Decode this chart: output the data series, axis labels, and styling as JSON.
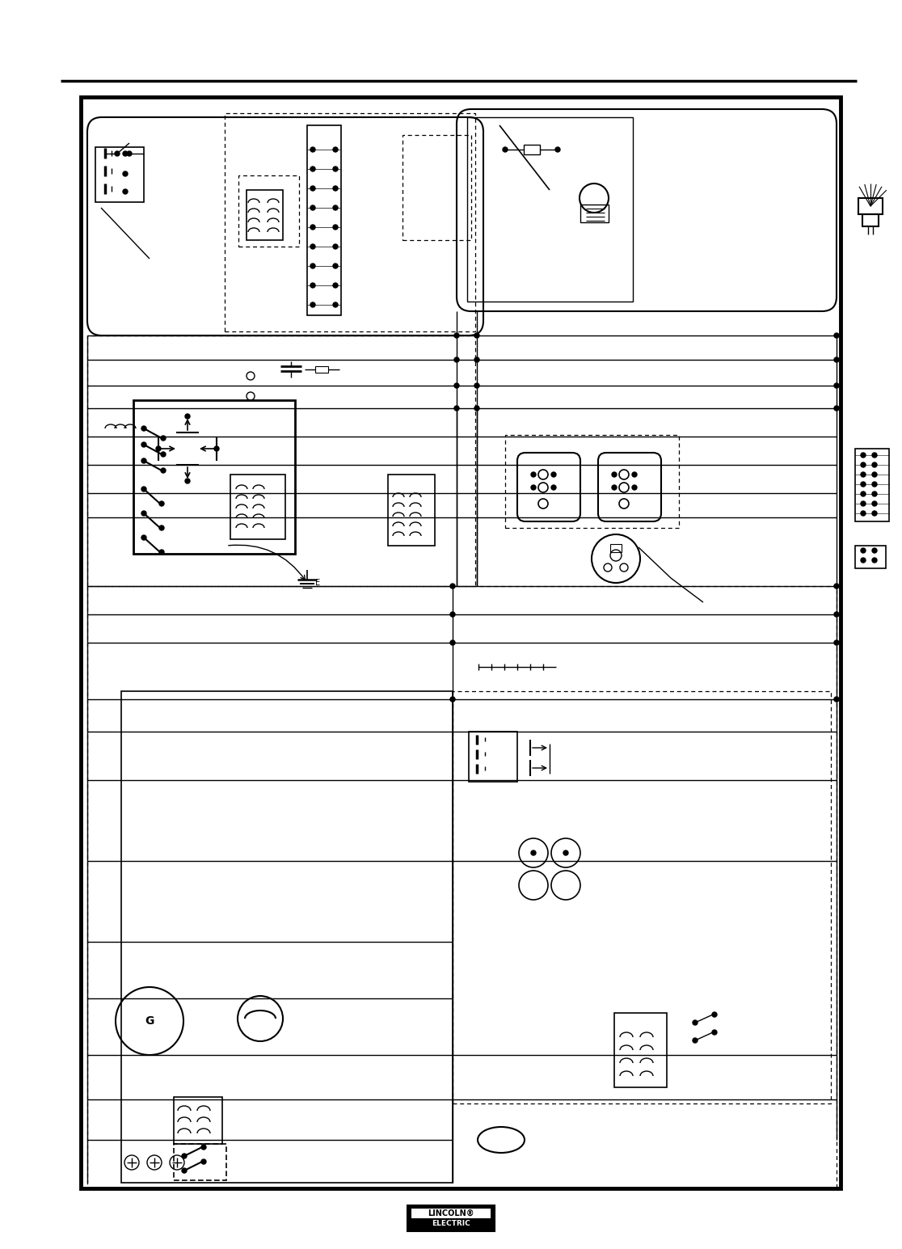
{
  "bg": "#ffffff",
  "lc": "#000000",
  "fig_w": 11.16,
  "fig_h": 15.45,
  "dpi": 100,
  "logo_top": "LINCOLN",
  "logo_bot": "ELECTRIC",
  "logo_reg": "®"
}
